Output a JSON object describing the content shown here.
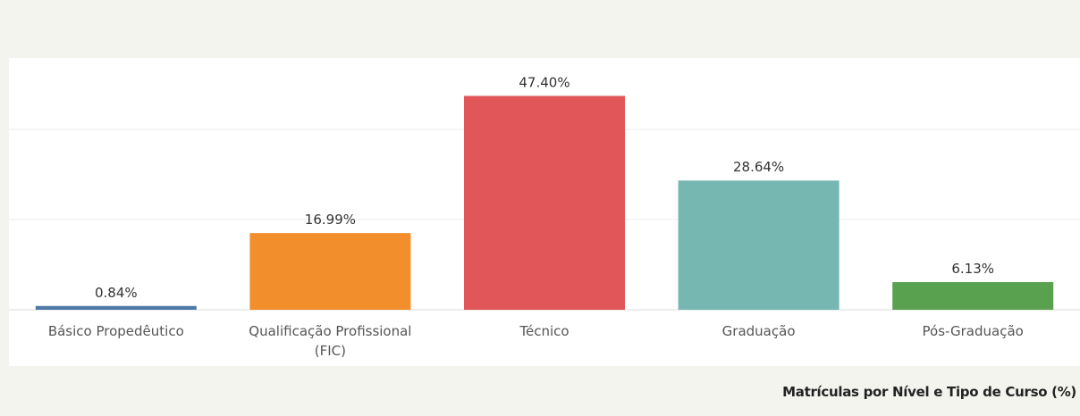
{
  "chart_data": {
    "type": "bar",
    "title": "Matrículas por Nível e Tipo de Curso (%)",
    "categories": [
      "Básico Propedêutico",
      "Qualificação Profissional (FIC)",
      "Técnico",
      "Graduação",
      "Pós-Graduação"
    ],
    "values": [
      0.84,
      16.99,
      47.4,
      28.64,
      6.13
    ],
    "value_labels": [
      "0.84%",
      "16.99%",
      "47.40%",
      "28.64%",
      "6.13%"
    ],
    "colors": [
      "#4e79a7",
      "#f28e2b",
      "#e15759",
      "#76b7b2",
      "#59a14f"
    ],
    "ylim": [
      0,
      55
    ],
    "yticks": [
      0,
      20,
      40
    ],
    "grid": true
  }
}
